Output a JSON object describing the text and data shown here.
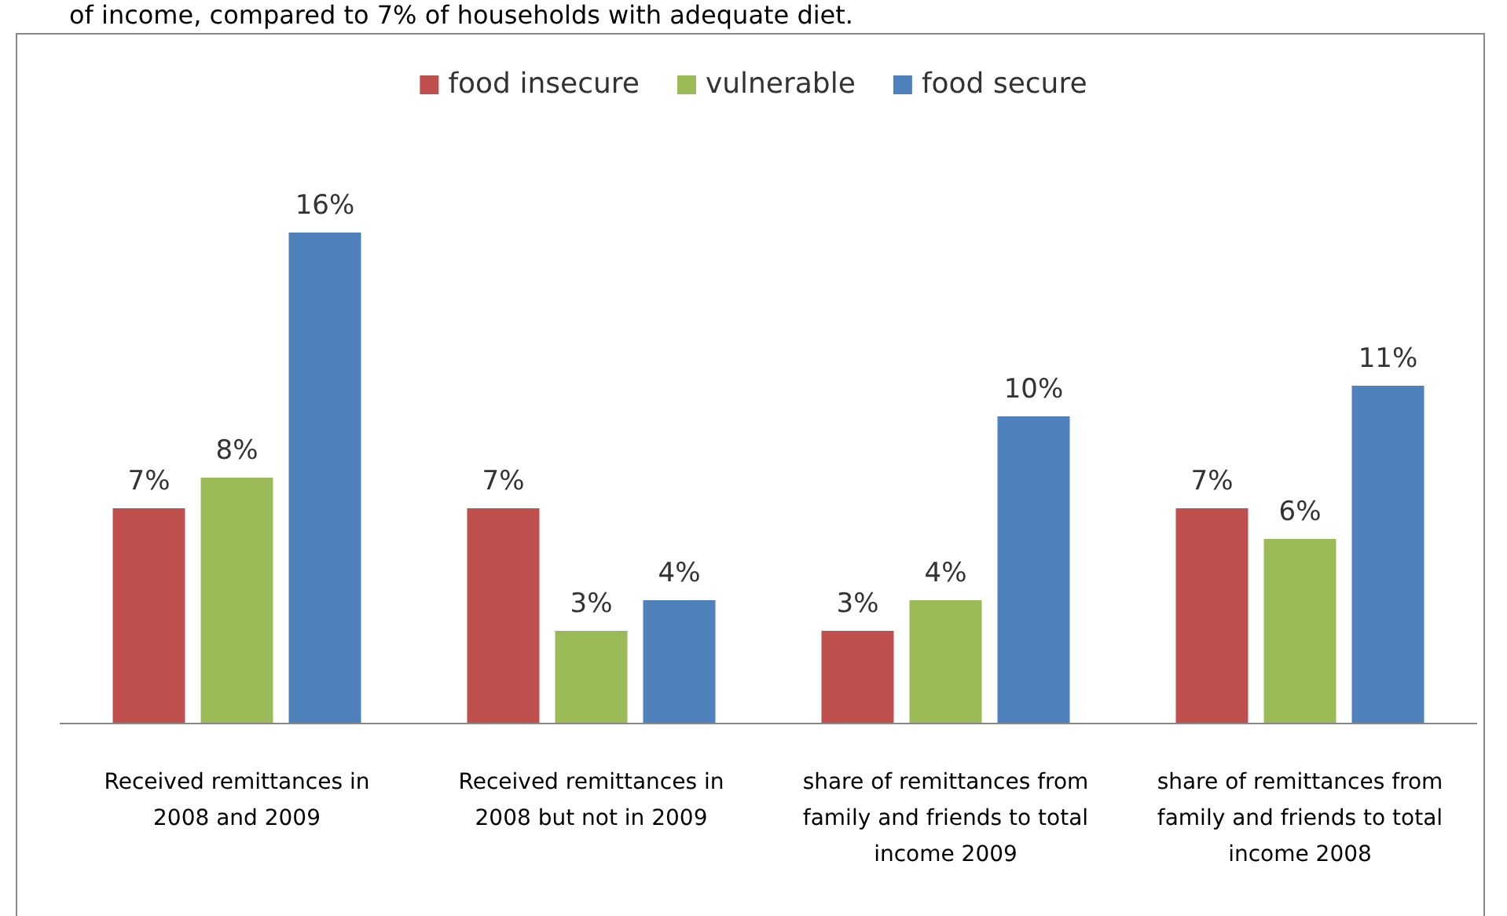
{
  "chart_data": {
    "type": "bar",
    "annotations": [
      "of income, compared to 7% of households with adequate diet."
    ],
    "categories": [
      "Received remittances in 2008 and 2009",
      "Received remittances in 2008 but not in 2009",
      "share of remittances from family and friends to total income 2009",
      "share of remittances from family and friends to total income 2008"
    ],
    "series": [
      {
        "name": "food insecure",
        "color": "#c0504d",
        "values": [
          7,
          7,
          3,
          7
        ],
        "value_labels": [
          "7%",
          "7%",
          "3%",
          "7%"
        ]
      },
      {
        "name": "vulnerable",
        "color": "#9bbb59",
        "values": [
          8,
          3,
          4,
          6
        ],
        "value_labels": [
          "8%",
          "3%",
          "4%",
          "6%"
        ]
      },
      {
        "name": "food secure",
        "color": "#4f81bd",
        "values": [
          16,
          4,
          10,
          11
        ],
        "value_labels": [
          "16%",
          "4%",
          "10%",
          "11%"
        ]
      }
    ],
    "legend": "top"
  }
}
